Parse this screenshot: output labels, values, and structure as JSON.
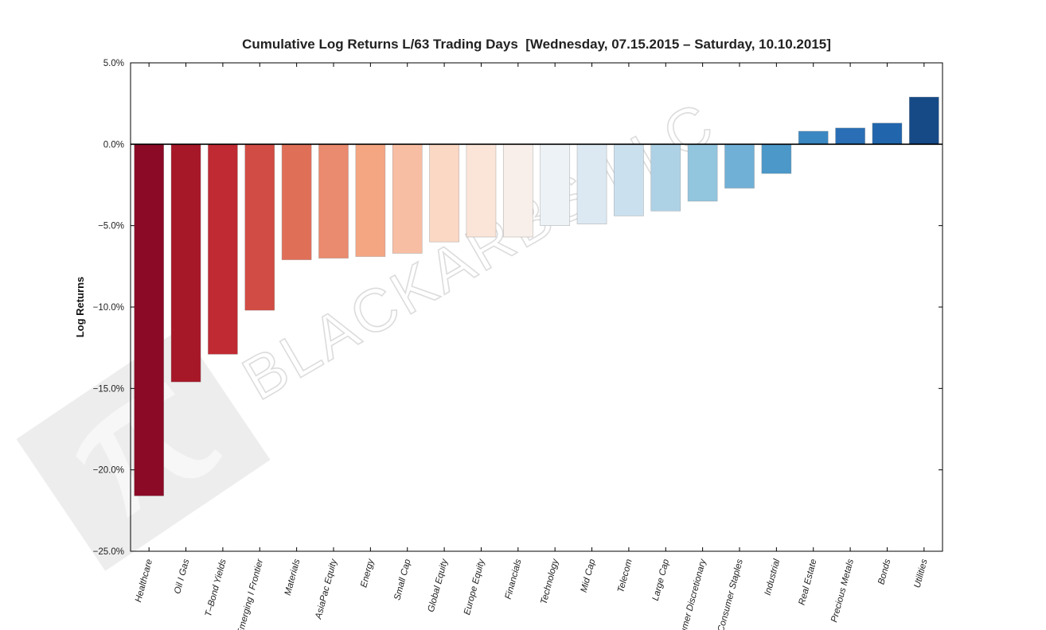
{
  "chart_data": {
    "type": "bar",
    "title": "Cumulative Log Returns L/63 Trading Days  [Wednesday, 07.15.2015 – Saturday, 10.10.2015]",
    "xlabel": "",
    "ylabel": "Log Returns",
    "ylim": [
      -0.25,
      0.05
    ],
    "yticks": [
      0.05,
      0.0,
      -0.05,
      -0.1,
      -0.15,
      -0.2,
      -0.25
    ],
    "ytick_labels": [
      "5.0%",
      "0.0%",
      "−5.0%",
      "−10.0%",
      "−15.0%",
      "−20.0%",
      "−25.0%"
    ],
    "categories": [
      "Healthcare",
      "Oil I Gas",
      "T–Bond Yields",
      "Emerging I Frontier",
      "Materials",
      "AsiaPac Equity",
      "Energy",
      "Small Cap",
      "Global Equity",
      "Europe Equity",
      "Financials",
      "Technology",
      "Mid Cap",
      "Telecom",
      "Large Cap",
      "Consumer Discretionary",
      "Consumer Staples",
      "Industrial",
      "Real Estate",
      "Precious Metals",
      "Bonds",
      "Utilities"
    ],
    "values": [
      -0.216,
      -0.146,
      -0.129,
      -0.102,
      -0.071,
      -0.07,
      -0.069,
      -0.067,
      -0.06,
      -0.057,
      -0.057,
      -0.05,
      -0.049,
      -0.044,
      -0.041,
      -0.035,
      -0.027,
      -0.018,
      0.008,
      0.01,
      0.013,
      0.029
    ],
    "colors": [
      "#8b0a26",
      "#a61728",
      "#c02a33",
      "#d14c44",
      "#e06f58",
      "#ea8a6e",
      "#f4a582",
      "#f8bea3",
      "#fbd8c4",
      "#fbe5d8",
      "#f8efea",
      "#edf2f7",
      "#dde9f2",
      "#cae0ee",
      "#aed2e5",
      "#92c5de",
      "#71b0d6",
      "#4b98c9",
      "#3b87c1",
      "#2a6fb5",
      "#2166ac",
      "#164a87"
    ],
    "grid": false,
    "legend": "none",
    "watermark": "BLACKARBS LLC",
    "watermark_logo": "pi-icon"
  }
}
